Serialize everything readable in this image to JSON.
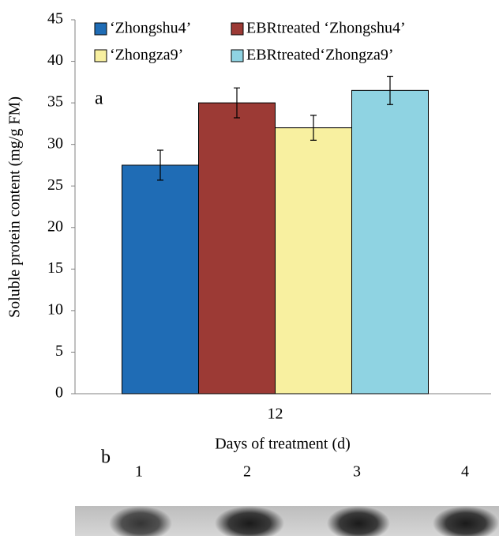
{
  "chart_data": {
    "type": "bar",
    "panel_label": "a",
    "y_label": "Soluble protein content (mg/g FM)",
    "x_label": "Days of treatment (d)",
    "categories": [
      "12"
    ],
    "series": [
      {
        "name": "‘Zhongshu4’",
        "color": "#1f6cb5",
        "values": [
          27.5
        ],
        "errors": [
          1.8
        ]
      },
      {
        "name": "EBRtreated ‘Zhongshu4’",
        "color": "#9c3a35",
        "values": [
          35
        ],
        "errors": [
          1.8
        ]
      },
      {
        "name": "‘Zhongza9’",
        "color": "#f8f0a0",
        "values": [
          32
        ],
        "errors": [
          1.5
        ]
      },
      {
        "name": "EBRtreated‘Zhongza9’",
        "color": "#8fd3e2",
        "values": [
          36.5
        ],
        "errors": [
          1.7
        ]
      }
    ],
    "ylim": [
      0,
      45
    ],
    "yticks": [
      0,
      5,
      10,
      15,
      20,
      25,
      30,
      35,
      40,
      45
    ],
    "grid": false
  },
  "gel": {
    "panel_label": "b",
    "lanes": [
      "1",
      "2",
      "3",
      "4"
    ]
  }
}
